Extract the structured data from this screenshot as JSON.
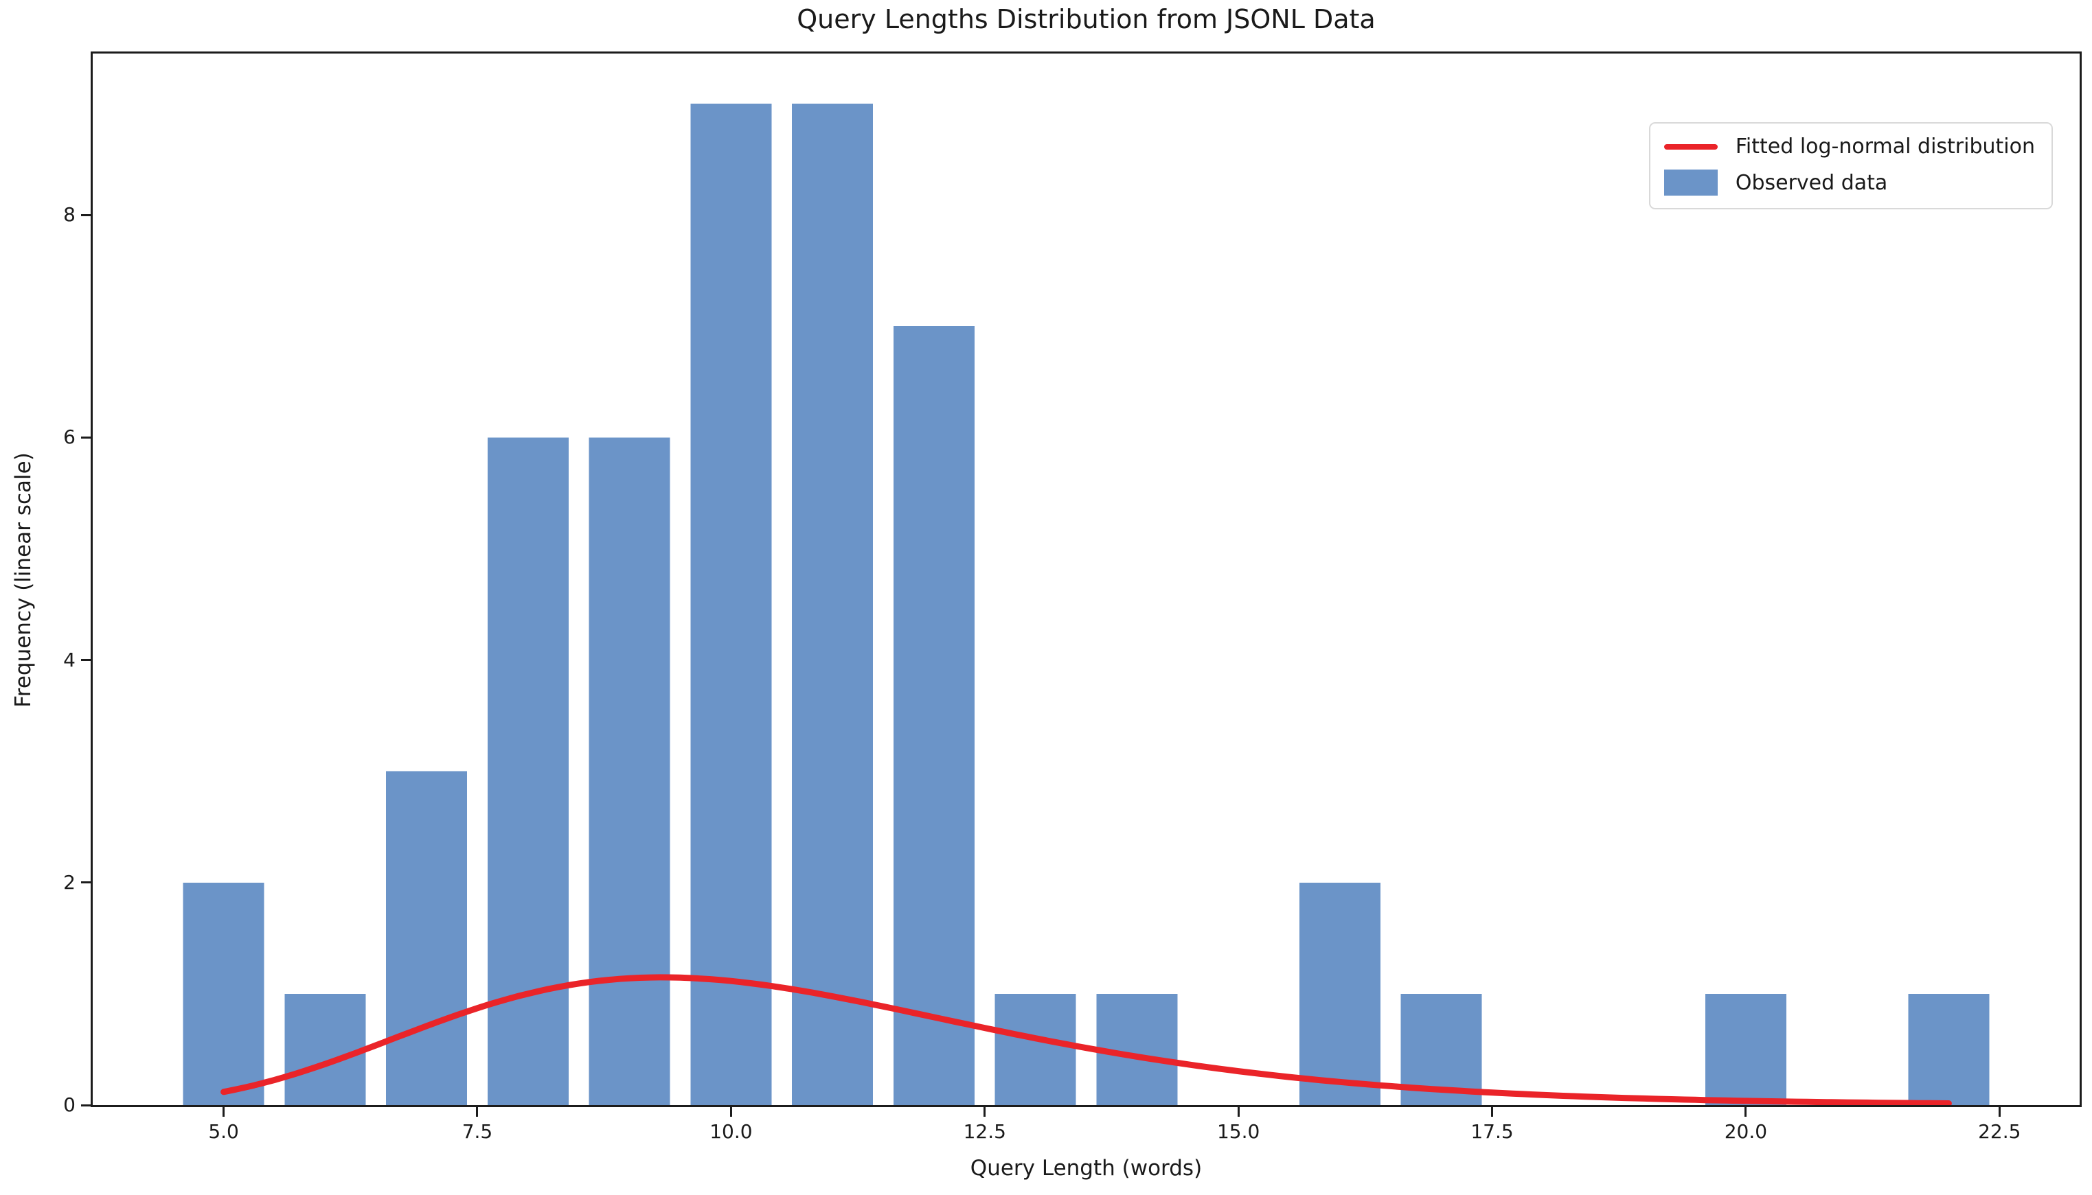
{
  "chart_data": {
    "type": "bar",
    "subtype": "histogram_with_fitted_curve",
    "title": "Query Lengths Distribution from JSONL Data",
    "xlabel": "Query Length (words)",
    "ylabel": "Frequency (linear scale)",
    "xlim": [
      3.71,
      23.29
    ],
    "ylim": [
      0,
      9.45
    ],
    "grid": false,
    "background": "#ffffff",
    "axis_color": "#1c1c1c",
    "text_color": "#1a1a1a",
    "x_ticks": [
      {
        "value": 5.0,
        "label": "5.0"
      },
      {
        "value": 7.5,
        "label": "7.5"
      },
      {
        "value": 10.0,
        "label": "10.0"
      },
      {
        "value": 12.5,
        "label": "12.5"
      },
      {
        "value": 15.0,
        "label": "15.0"
      },
      {
        "value": 17.5,
        "label": "17.5"
      },
      {
        "value": 20.0,
        "label": "20.0"
      },
      {
        "value": 22.5,
        "label": "22.5"
      }
    ],
    "y_ticks": [
      {
        "value": 0,
        "label": "0"
      },
      {
        "value": 2,
        "label": "2"
      },
      {
        "value": 4,
        "label": "4"
      },
      {
        "value": 6,
        "label": "6"
      },
      {
        "value": 8,
        "label": "8"
      }
    ],
    "bars": {
      "name": "Observed data",
      "color": "#6b94c8",
      "bin_width": 0.8,
      "categories": [
        5,
        6,
        7,
        8,
        9,
        10,
        11,
        12,
        13,
        14,
        15,
        16,
        17,
        18,
        19,
        20,
        21,
        22
      ],
      "counts": [
        2,
        1,
        3,
        6,
        6,
        9,
        9,
        7,
        1,
        1,
        0,
        2,
        1,
        0,
        0,
        1,
        0,
        1
      ]
    },
    "fit_curve": {
      "name": "Fitted log-normal distribution",
      "color": "#ea2429",
      "distribution": "lognormal",
      "mu": 2.3176,
      "sigma": 0.2923,
      "scale": 8.18,
      "x_start": 5.0,
      "x_end": 22.0,
      "peak": {
        "x": 9.32,
        "y": 1.15
      },
      "line_width": 9,
      "sampled_points": [
        [
          5.0,
          0.12
        ],
        [
          5.5,
          0.23
        ],
        [
          6.0,
          0.37
        ],
        [
          6.5,
          0.54
        ],
        [
          7.0,
          0.71
        ],
        [
          7.5,
          0.87
        ],
        [
          8.0,
          1.0
        ],
        [
          8.5,
          1.09
        ],
        [
          9.0,
          1.14
        ],
        [
          9.5,
          1.15
        ],
        [
          10.0,
          1.11
        ],
        [
          10.5,
          1.06
        ],
        [
          11.0,
          0.98
        ],
        [
          11.5,
          0.89
        ],
        [
          12.0,
          0.79
        ],
        [
          13.0,
          0.6
        ],
        [
          14.0,
          0.44
        ],
        [
          15.0,
          0.3
        ],
        [
          16.0,
          0.21
        ],
        [
          17.0,
          0.14
        ],
        [
          18.0,
          0.09
        ],
        [
          19.0,
          0.06
        ],
        [
          20.0,
          0.04
        ],
        [
          21.0,
          0.02
        ],
        [
          22.0,
          0.02
        ]
      ]
    },
    "legend": {
      "position": "upper right",
      "entries": [
        {
          "label": "Fitted log-normal distribution",
          "type": "line",
          "color": "#ea2429"
        },
        {
          "label": "Observed data",
          "type": "patch",
          "color": "#6b94c8"
        }
      ]
    }
  }
}
